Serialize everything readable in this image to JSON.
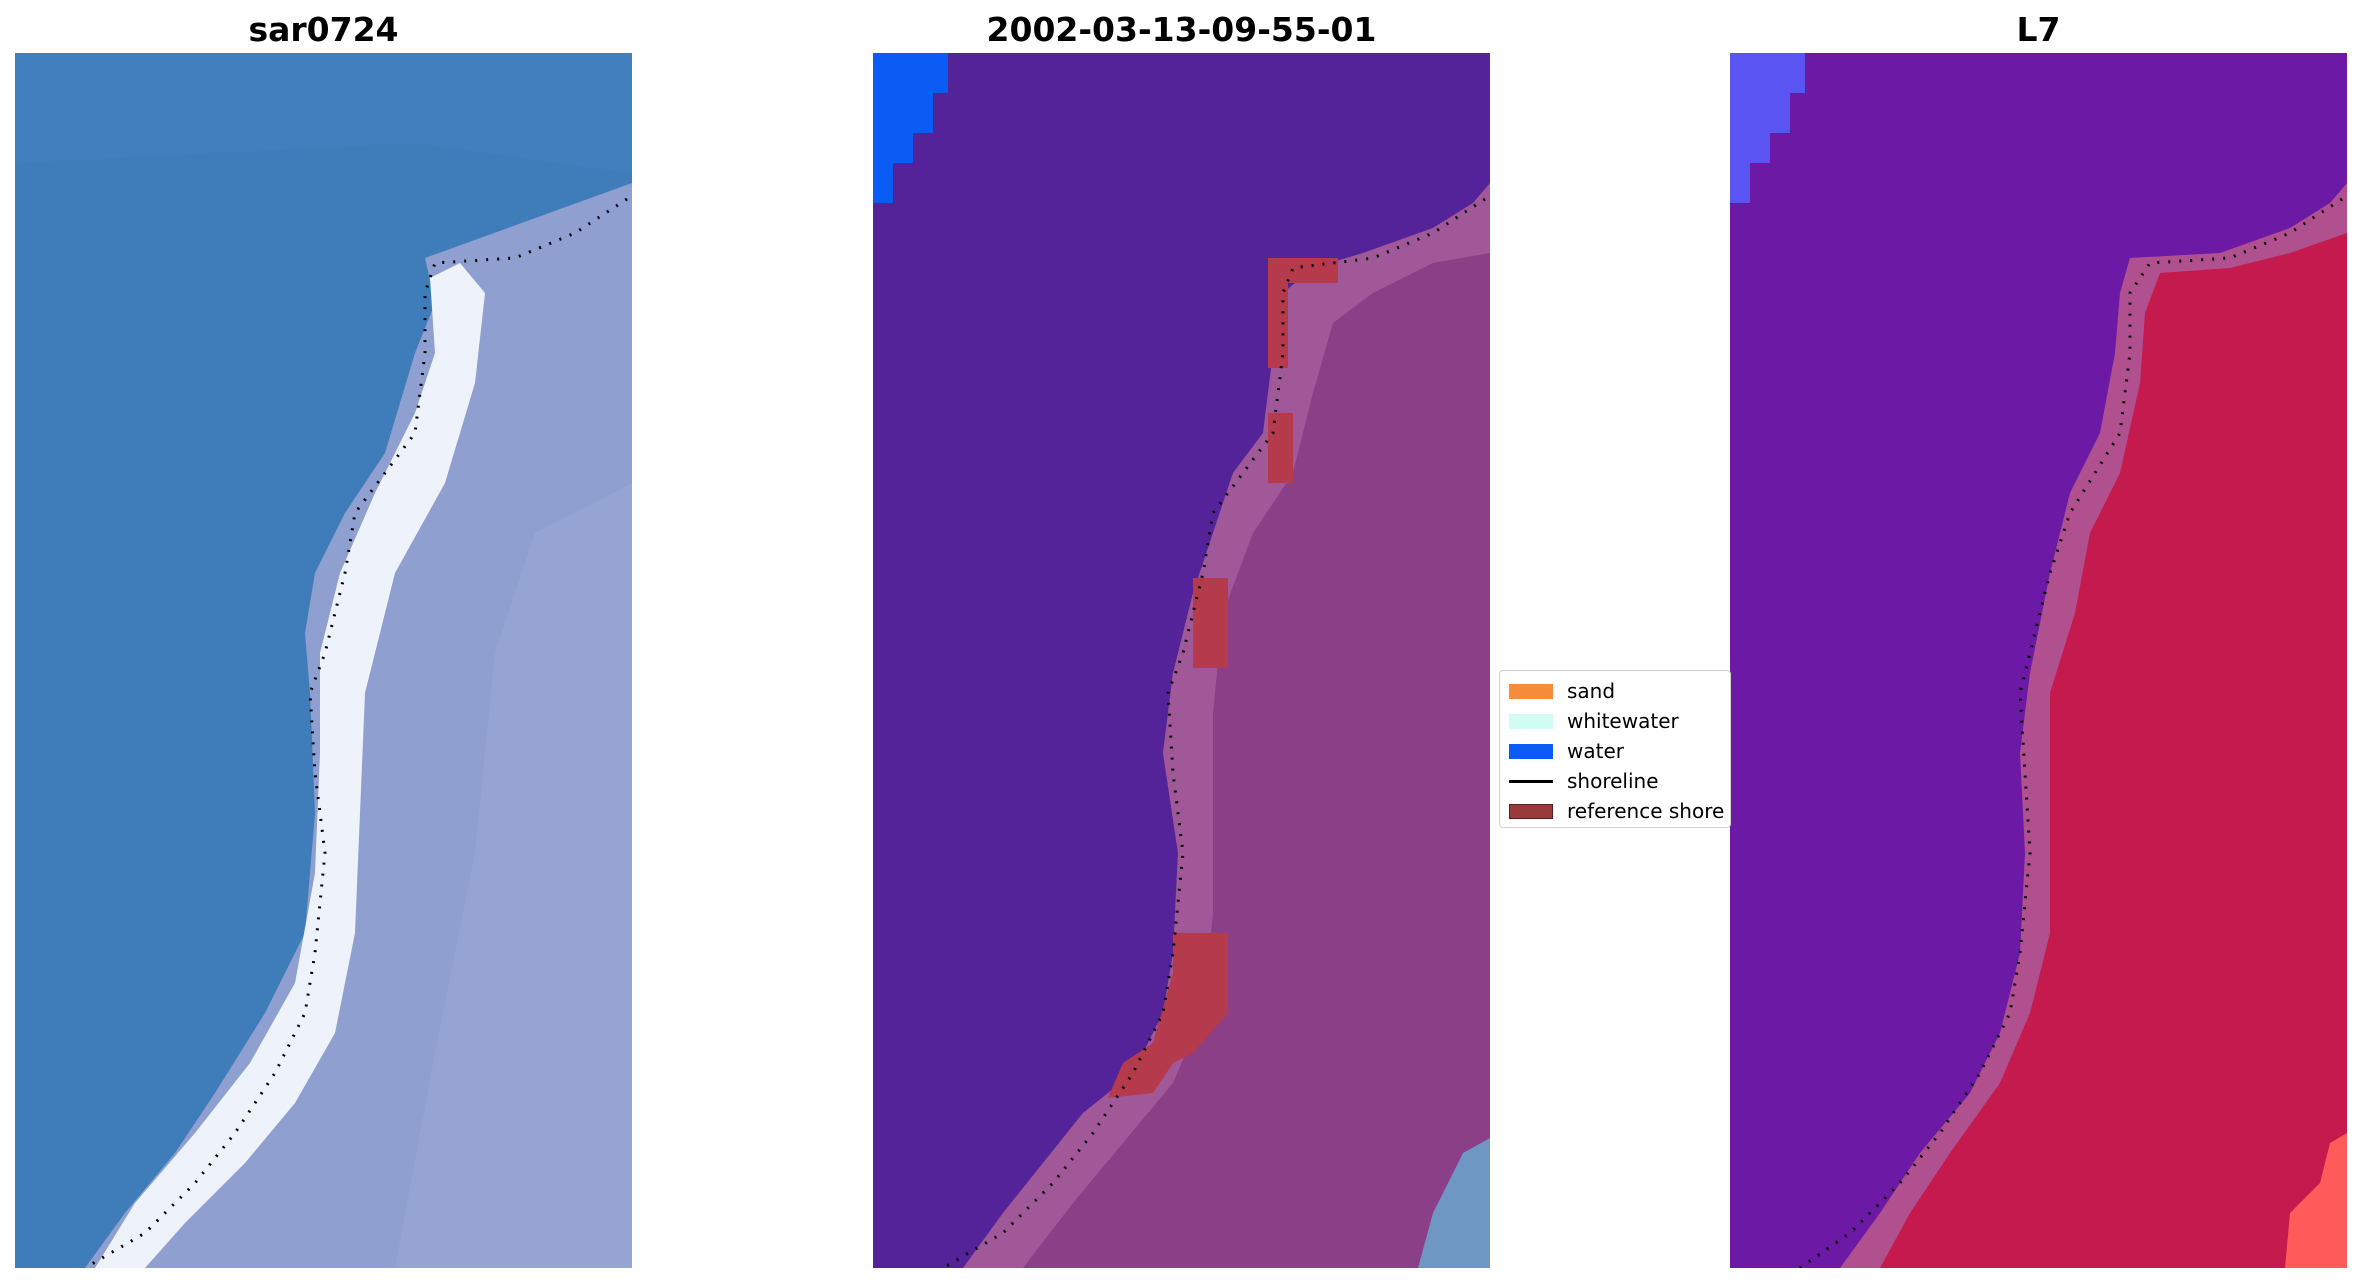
{
  "figure": {
    "panels": [
      {
        "id": "rgb",
        "title": "sar0724"
      },
      {
        "id": "classified",
        "title": "2002-03-13-09-55-01"
      },
      {
        "id": "index",
        "title": "L7"
      }
    ]
  },
  "legend": {
    "items": [
      {
        "label": "sand",
        "color": "#f78c3a",
        "kind": "patch"
      },
      {
        "label": "whitewater",
        "color": "#d0fcf4",
        "kind": "patch"
      },
      {
        "label": "water",
        "color": "#0a5cf5",
        "kind": "patch"
      },
      {
        "label": "shoreline",
        "color": "#000000",
        "kind": "line"
      },
      {
        "label": "reference shore",
        "color": "#9a3b3b",
        "kind": "patch"
      }
    ]
  },
  "palette": {
    "rgb_water": "#3f7dba",
    "rgb_land": "#8f9fcf",
    "rgb_beach": "#eef2fb",
    "class_background": "#542399",
    "class_land": "#8a3f86",
    "class_land_light": "#a05898",
    "class_reference": "#b53a4c",
    "class_water": "#0a5cf5",
    "class_corner_blue": "#6e97c4",
    "index_water": "#6c1aa6",
    "index_land": "#c41a4e",
    "index_edge": "#b0508e",
    "index_blue": "#5a55f2",
    "index_bright": "#ff5b5b",
    "shoreline_dots": "#000000"
  }
}
